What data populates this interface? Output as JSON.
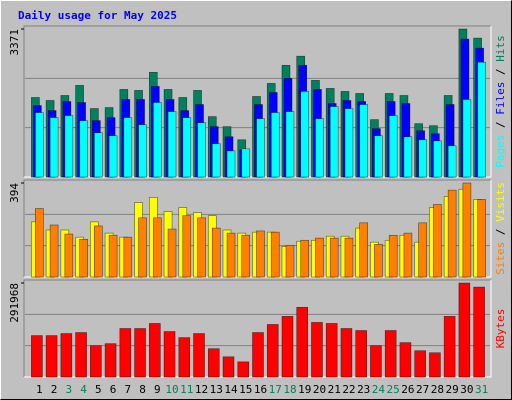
{
  "chart_data": [
    {
      "type": "bar",
      "title": "Daily usage for May 2025",
      "ylim": [
        0,
        3371
      ],
      "yticks": [
        3371
      ],
      "legend_separator": " / ",
      "series": [
        {
          "name": "Hits",
          "color": "#00805c",
          "values": [
            1811,
            1743,
            1857,
            2087,
            1559,
            1582,
            1995,
            1972,
            2385,
            1995,
            1811,
            1972,
            1376,
            1147,
            848,
            1834,
            2132,
            2545,
            2752,
            2201,
            2018,
            1949,
            1903,
            1307,
            1903,
            1857,
            1215,
            1169,
            1857,
            3371,
            3164
          ]
        },
        {
          "name": "Files",
          "color": "#0000ff",
          "values": [
            1628,
            1513,
            1720,
            1697,
            1284,
            1353,
            1766,
            1766,
            2064,
            1766,
            1513,
            1651,
            1147,
            917,
            619,
            1651,
            1926,
            2247,
            2545,
            1995,
            1674,
            1743,
            1720,
            1101,
            1720,
            1674,
            1055,
            986,
            1651,
            3141,
            2935
          ]
        },
        {
          "name": "Pages",
          "color": "#00ffff",
          "values": [
            1468,
            1353,
            1399,
            1284,
            1009,
            940,
            1353,
            1192,
            1697,
            1490,
            1353,
            1238,
            757,
            596,
            642,
            1330,
            1468,
            1490,
            1949,
            1330,
            1605,
            1559,
            1651,
            940,
            1399,
            917,
            848,
            825,
            711,
            1766,
            2614
          ]
        }
      ]
    },
    {
      "type": "bar",
      "ylim": [
        0,
        394
      ],
      "yticks": [
        394
      ],
      "legend_separator": " / ",
      "series": [
        {
          "name": "Visits",
          "color": "#ffff00",
          "values": [
            231,
            197,
            197,
            167,
            231,
            184,
            167,
            312,
            334,
            274,
            291,
            270,
            257,
            197,
            184,
            188,
            188,
            128,
            150,
            154,
            171,
            171,
            205,
            146,
            154,
            175,
            146,
            291,
            338,
            368,
            325
          ]
        },
        {
          "name": "Sites",
          "color": "#ff8000",
          "values": [
            287,
            218,
            180,
            158,
            214,
            175,
            167,
            248,
            248,
            201,
            257,
            248,
            205,
            184,
            175,
            193,
            188,
            133,
            154,
            163,
            163,
            163,
            227,
            137,
            175,
            184,
            227,
            304,
            364,
            394,
            325
          ]
        }
      ]
    },
    {
      "type": "bar",
      "ylim": [
        0,
        291968
      ],
      "yticks": [
        291968
      ],
      "legend_separator": " / ",
      "categories": [
        "1",
        "2",
        "3",
        "4",
        "5",
        "6",
        "7",
        "8",
        "9",
        "10",
        "11",
        "12",
        "13",
        "14",
        "15",
        "16",
        "17",
        "18",
        "19",
        "20",
        "21",
        "22",
        "23",
        "24",
        "25",
        "26",
        "27",
        "28",
        "29",
        "30",
        "31"
      ],
      "category_colors": [
        "#000000",
        "#000000",
        "#00805c",
        "#00805c",
        "#000000",
        "#000000",
        "#000000",
        "#000000",
        "#000000",
        "#00805c",
        "#00805c",
        "#000000",
        "#000000",
        "#000000",
        "#000000",
        "#000000",
        "#00805c",
        "#00805c",
        "#000000",
        "#000000",
        "#000000",
        "#000000",
        "#000000",
        "#00805c",
        "#00805c",
        "#000000",
        "#000000",
        "#000000",
        "#000000",
        "#000000",
        "#00805c"
      ],
      "series": [
        {
          "name": "KBytes",
          "color": "#ff0000",
          "values": [
            128700,
            128700,
            134977,
            138116,
            97309,
            103587,
            150672,
            150672,
            166367,
            141255,
            122423,
            134977,
            87893,
            62780,
            47085,
            138116,
            163228,
            188340,
            216591,
            169506,
            166367,
            150672,
            144394,
            97309,
            144394,
            106726,
            81614,
            75336,
            188340,
            291968,
            279380
          ]
        }
      ]
    }
  ]
}
